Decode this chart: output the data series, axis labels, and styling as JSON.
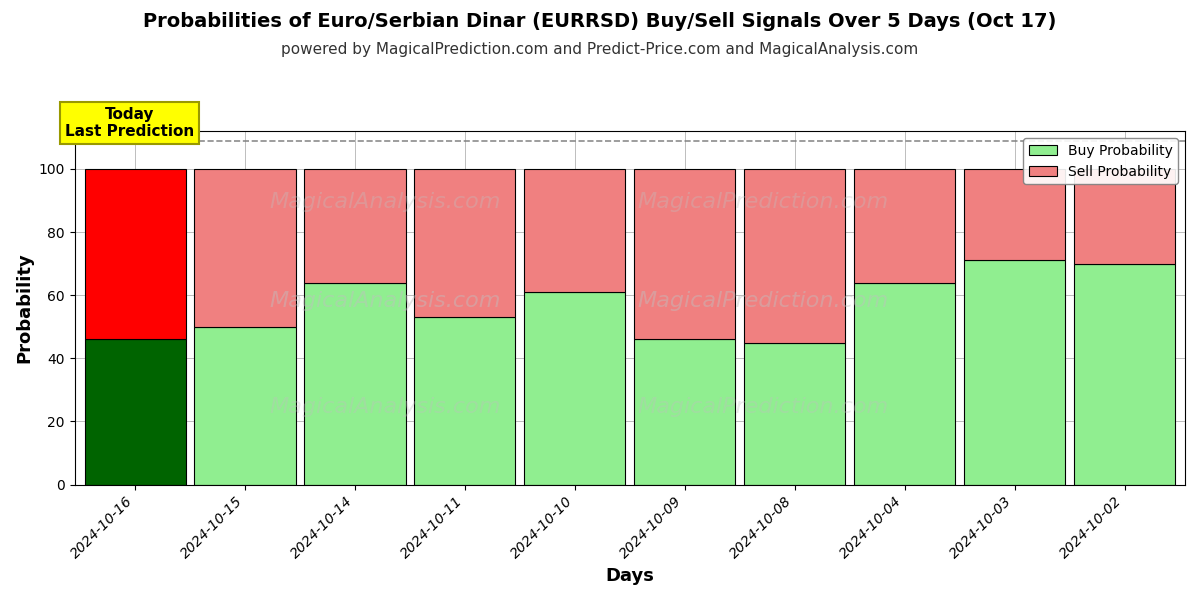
{
  "title": "Probabilities of Euro/Serbian Dinar (EURRSD) Buy/Sell Signals Over 5 Days (Oct 17)",
  "subtitle": "powered by MagicalPrediction.com and Predict-Price.com and MagicalAnalysis.com",
  "xlabel": "Days",
  "ylabel": "Probability",
  "categories": [
    "2024-10-16",
    "2024-10-15",
    "2024-10-14",
    "2024-10-11",
    "2024-10-10",
    "2024-10-09",
    "2024-10-08",
    "2024-10-04",
    "2024-10-03",
    "2024-10-02"
  ],
  "buy_values": [
    46,
    50,
    64,
    53,
    61,
    46,
    45,
    64,
    71,
    70
  ],
  "sell_values": [
    54,
    50,
    36,
    47,
    39,
    54,
    55,
    36,
    29,
    30
  ],
  "buy_color_first": "#006400",
  "sell_color_first": "#ff0000",
  "buy_color_rest": "#90ee90",
  "sell_color_rest": "#f08080",
  "bar_edgecolor": "#000000",
  "ylim": [
    0,
    112
  ],
  "yticks": [
    0,
    20,
    40,
    60,
    80,
    100
  ],
  "dashed_line_y": 109,
  "annotation_text": "Today\nLast Prediction",
  "annotation_bg": "#ffff00",
  "legend_buy_color": "#90ee90",
  "legend_sell_color": "#f08080",
  "title_fontsize": 14,
  "subtitle_fontsize": 11,
  "axis_label_fontsize": 13,
  "tick_fontsize": 10,
  "bar_width": 0.92,
  "figsize": [
    12,
    6
  ],
  "dpi": 100
}
